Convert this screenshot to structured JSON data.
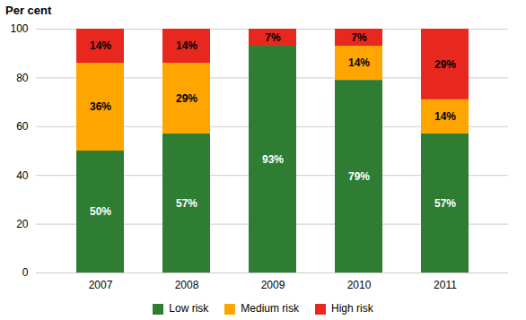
{
  "chart_data": {
    "type": "bar",
    "stacked": true,
    "categories": [
      "2007",
      "2008",
      "2009",
      "2010",
      "2011"
    ],
    "series": [
      {
        "name": "Low risk",
        "color": "#2E7D32",
        "values": [
          50,
          57,
          93,
          79,
          57
        ],
        "value_labels": [
          "50%",
          "57%",
          "93%",
          "79%",
          "57%"
        ]
      },
      {
        "name": "Medium risk",
        "color": "#FFA500",
        "values": [
          36,
          29,
          0,
          14,
          14
        ],
        "value_labels": [
          "36%",
          "29%",
          null,
          "14%",
          "14%"
        ]
      },
      {
        "name": "High risk",
        "color": "#E8281E",
        "values": [
          14,
          14,
          7,
          7,
          29
        ],
        "value_labels": [
          "14%",
          "14%",
          "7%",
          "7%",
          "29%"
        ]
      }
    ],
    "ylabel": "Per cent",
    "ylim": [
      0,
      100
    ],
    "yticks": [
      0,
      20,
      40,
      60,
      80,
      100
    ],
    "grid": true,
    "legend": "bottom",
    "data_labels": true
  }
}
